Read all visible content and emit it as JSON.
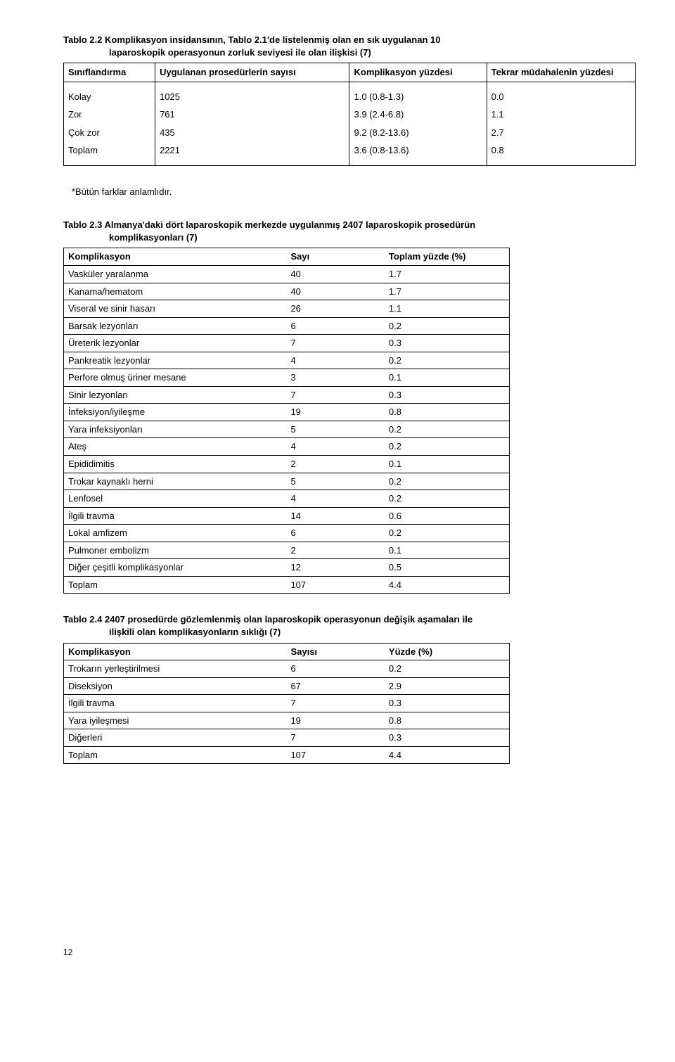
{
  "table22": {
    "caption_l1": "Tablo 2.2 Komplikasyon insidansının, Tablo 2.1'de listelenmiş olan en sık uygulanan 10",
    "caption_l2": "laparoskopik operasyonun zorluk seviyesi ile olan ilişkisi (7)",
    "headers": [
      "Sınıflandırma",
      "Uygulanan prosedürlerin sayısı",
      "Komplikasyon yüzdesi",
      "Tekrar müdahalenin yüzdesi"
    ],
    "rows": [
      [
        "Kolay",
        "1025",
        "1.0 (0.8-1.3)",
        "0.0"
      ],
      [
        "Zor",
        "761",
        "3.9 (2.4-6.8)",
        "1.1"
      ],
      [
        "Çok zor",
        "435",
        "9.2 (8.2-13.6)",
        "2.7"
      ],
      [
        "Toplam",
        "2221",
        "3.6 (0.8-13.6)",
        "0.8"
      ]
    ],
    "note": "*Bütün farklar anlamlıdır."
  },
  "table23": {
    "caption_l1": "Tablo 2.3 Almanya'daki dört laparoskopik merkezde uygulanmış 2407 laparoskopik prosedürün",
    "caption_l2": "komplikasyonları (7)",
    "headers": [
      "Komplikasyon",
      "Sayı",
      "Toplam yüzde (%)"
    ],
    "rows": [
      [
        "Vasküler yaralanma",
        "40",
        "1.7"
      ],
      [
        "Kanama/hematom",
        "40",
        "1.7"
      ],
      [
        "Viseral ve sinir hasarı",
        "26",
        "1.1"
      ],
      [
        "Barsak lezyonları",
        "6",
        "0.2"
      ],
      [
        "Üreterik lezyonlar",
        "7",
        "0.3"
      ],
      [
        "Pankreatik lezyonlar",
        "4",
        "0.2"
      ],
      [
        "Perfore olmuş üriner mesane",
        "3",
        "0.1"
      ],
      [
        "Sinir lezyonları",
        "7",
        "0.3"
      ],
      [
        "İnfeksiyon/iyileşme",
        "19",
        "0.8"
      ],
      [
        "Yara infeksiyonları",
        "5",
        "0.2"
      ],
      [
        "Ateş",
        "4",
        "0.2"
      ],
      [
        "Epididimitis",
        "2",
        "0.1"
      ],
      [
        "Trokar kaynaklı herni",
        "5",
        "0.2"
      ],
      [
        "Lenfosel",
        "4",
        "0.2"
      ],
      [
        "İlgili travma",
        "14",
        "0.6"
      ],
      [
        "Lokal amfizem",
        "6",
        "0.2"
      ],
      [
        "Pulmoner embolizm",
        "2",
        "0.1"
      ],
      [
        "Diğer çeşitli komplikasyonlar",
        "12",
        "0.5"
      ],
      [
        "Toplam",
        "107",
        "4.4"
      ]
    ]
  },
  "table24": {
    "caption_l1": "Tablo 2.4 2407 prosedürde gözlemlenmiş olan laparoskopik operasyonun değişik aşamaları ile",
    "caption_l2": "ilişkili olan komplikasyonların sıklığı (7)",
    "headers": [
      "Komplikasyon",
      "Sayısı",
      "Yüzde (%)"
    ],
    "rows": [
      [
        "Trokarın yerleştirilmesi",
        "6",
        "0.2"
      ],
      [
        "Diseksiyon",
        "67",
        "2.9"
      ],
      [
        "İlgili travma",
        "7",
        "0.3"
      ],
      [
        "Yara iyileşmesi",
        "19",
        "0.8"
      ],
      [
        "Diğerleri",
        "7",
        "0.3"
      ],
      [
        "Toplam",
        "107",
        "4.4"
      ]
    ]
  },
  "page_number": "12"
}
